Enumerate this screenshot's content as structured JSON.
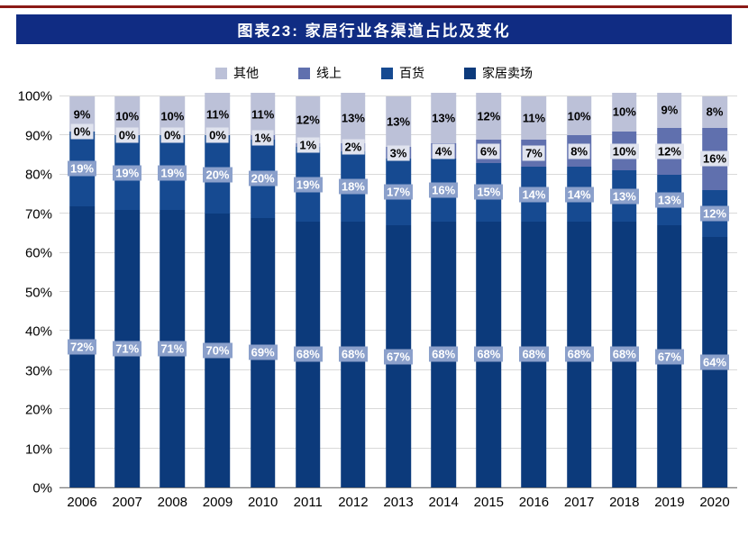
{
  "page": {
    "title": "图表23:  家居行业各渠道占比及变化"
  },
  "theme": {
    "top_rule": "#8b1a17",
    "title_bar": "#102c83",
    "label_box": "#8ba0cb",
    "label_light": "#e0e3ee",
    "grid_line": "#d9d9d9",
    "axis_line": "#808080"
  },
  "chart_data": {
    "type": "bar",
    "stacked": true,
    "title": "图表23:  家居行业各渠道占比及变化",
    "categories": [
      "2006",
      "2007",
      "2008",
      "2009",
      "2010",
      "2011",
      "2012",
      "2013",
      "2014",
      "2015",
      "2016",
      "2017",
      "2018",
      "2019",
      "2020"
    ],
    "series": [
      {
        "name": "家居卖场",
        "color": "#0c3a7b",
        "label_style": "box",
        "values": [
          72,
          71,
          71,
          70,
          69,
          68,
          68,
          67,
          68,
          68,
          68,
          68,
          68,
          67,
          64
        ]
      },
      {
        "name": "百货",
        "color": "#164a91",
        "label_style": "box",
        "values": [
          19,
          19,
          19,
          20,
          20,
          19,
          18,
          17,
          16,
          15,
          14,
          14,
          13,
          13,
          12
        ]
      },
      {
        "name": "线上",
        "color": "#6070ae",
        "label_style": "light",
        "values": [
          0,
          0,
          0,
          0,
          1,
          1,
          2,
          3,
          4,
          6,
          7,
          8,
          10,
          12,
          16
        ]
      },
      {
        "name": "其他",
        "color": "#bcc1d8",
        "label_style": "plain",
        "values": [
          9,
          10,
          10,
          11,
          11,
          12,
          13,
          13,
          13,
          12,
          11,
          10,
          10,
          9,
          8
        ]
      }
    ],
    "legend": [
      {
        "name": "其他",
        "color": "#bcc1d8"
      },
      {
        "name": "线上",
        "color": "#6070ae"
      },
      {
        "name": "百货",
        "color": "#164a91"
      },
      {
        "name": "家居卖场",
        "color": "#0c3a7b"
      }
    ],
    "legend_position": "top",
    "grid": true,
    "xlabel": "",
    "ylabel": "",
    "ylim": [
      0,
      100
    ],
    "ytick_step": 10,
    "ytick_format": "percent"
  }
}
